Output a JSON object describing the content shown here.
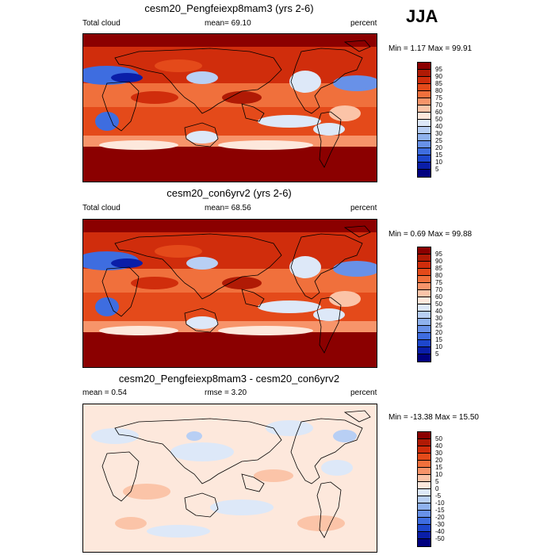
{
  "season": "JJA",
  "panels": [
    {
      "id": "exp",
      "title": "cesm20_Pengfeiexp8mam3 (yrs 2-6)",
      "left_label": "Total cloud",
      "center_label": "mean=  69.10",
      "right_label": "percent",
      "minmax": "Min =   1.17 Max =  99.91",
      "legend": {
        "labels": [
          "95",
          "90",
          "85",
          "80",
          "75",
          "70",
          "60",
          "50",
          "40",
          "30",
          "25",
          "20",
          "15",
          "10",
          "5"
        ],
        "colors": [
          "#8b0000",
          "#b01a05",
          "#d02d0c",
          "#e44a1a",
          "#f0703c",
          "#f7946a",
          "#fbc4a8",
          "#fde8dc",
          "#dde8f8",
          "#b8cff4",
          "#8fb2ee",
          "#6891e8",
          "#3e6de0",
          "#1d46cc",
          "#0a1ea8",
          "#000080"
        ]
      }
    },
    {
      "id": "ctl",
      "title": "cesm20_con6yrv2 (yrs 2-6)",
      "left_label": "Total cloud",
      "center_label": "mean=  68.56",
      "right_label": "percent",
      "minmax": "Min =   0.69 Max =  99.88",
      "legend": {
        "labels": [
          "95",
          "90",
          "85",
          "80",
          "75",
          "70",
          "60",
          "50",
          "40",
          "30",
          "25",
          "20",
          "15",
          "10",
          "5"
        ],
        "colors": [
          "#8b0000",
          "#b01a05",
          "#d02d0c",
          "#e44a1a",
          "#f0703c",
          "#f7946a",
          "#fbc4a8",
          "#fde8dc",
          "#dde8f8",
          "#b8cff4",
          "#8fb2ee",
          "#6891e8",
          "#3e6de0",
          "#1d46cc",
          "#0a1ea8",
          "#000080"
        ]
      }
    },
    {
      "id": "diff",
      "title": "cesm20_Pengfeiexp8mam3 - cesm20_con6yrv2",
      "left_label": "mean =   0.54",
      "center_label": "rmse =   3.20",
      "right_label": "percent",
      "minmax": "Min = -13.38 Max =  15.50",
      "legend": {
        "labels": [
          "50",
          "40",
          "30",
          "20",
          "15",
          "10",
          "5",
          "0",
          "-5",
          "-10",
          "-15",
          "-20",
          "-30",
          "-40",
          "-50"
        ],
        "colors": [
          "#8b0000",
          "#b01a05",
          "#d02d0c",
          "#e44a1a",
          "#f0703c",
          "#f7946a",
          "#fbc4a8",
          "#fde8dc",
          "#dde8f8",
          "#b8cff4",
          "#8fb2ee",
          "#6891e8",
          "#3e6de0",
          "#1d46cc",
          "#0a1ea8",
          "#000080"
        ]
      }
    }
  ]
}
